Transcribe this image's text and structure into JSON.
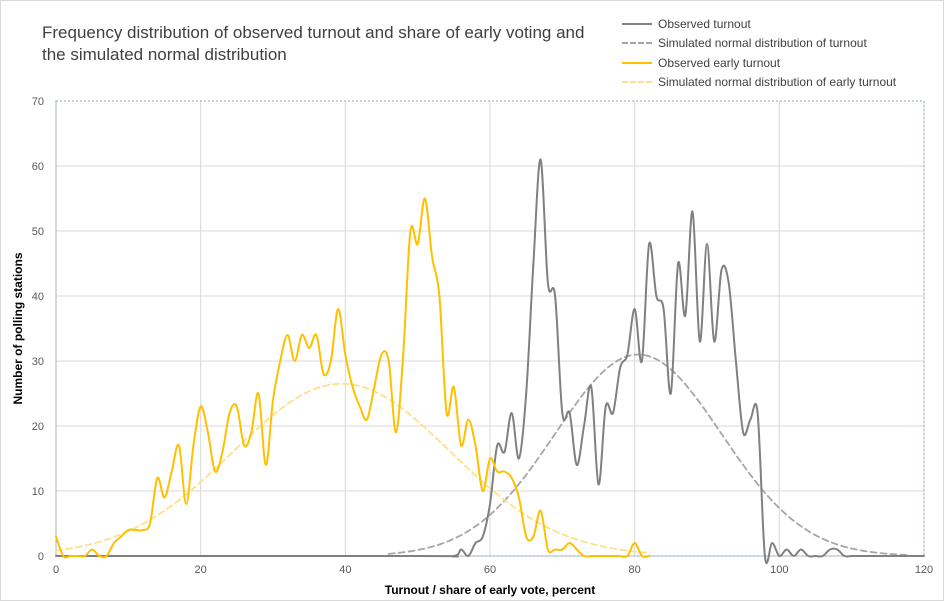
{
  "chart_data": {
    "type": "line",
    "title": "Frequency distribution of observed turnout and share of early voting and the simulated normal distribution",
    "xlabel": "Turnout / share of early vote, percent",
    "ylabel": "Number of polling stations",
    "xlim": [
      0,
      120
    ],
    "ylim": [
      0,
      70
    ],
    "x_ticks": [
      0,
      20,
      40,
      60,
      80,
      100,
      120
    ],
    "y_ticks": [
      0,
      10,
      20,
      30,
      40,
      50,
      60,
      70
    ],
    "grid": true,
    "legend_position": "top-right",
    "series": [
      {
        "name": "Observed turnout",
        "color": "#808080",
        "style": "solid",
        "x": [
          0,
          50,
          55,
          56,
          57,
          58,
          59,
          60,
          61,
          62,
          63,
          64,
          65,
          66,
          67,
          68,
          69,
          70,
          71,
          72,
          73,
          74,
          75,
          76,
          77,
          78,
          79,
          80,
          81,
          82,
          83,
          84,
          85,
          86,
          87,
          88,
          89,
          90,
          91,
          92,
          93,
          94,
          95,
          96,
          97,
          98,
          99,
          100,
          101,
          102,
          103,
          104,
          105,
          106,
          107,
          108,
          109,
          110,
          111,
          112,
          120
        ],
        "y": [
          0,
          0,
          0,
          1,
          0,
          2,
          3,
          8,
          17,
          16,
          22,
          15,
          25,
          45,
          61,
          42,
          40,
          22,
          22,
          14,
          20,
          26,
          11,
          23,
          22,
          29,
          31,
          38,
          30,
          48,
          40,
          38,
          25,
          45,
          37,
          53,
          33,
          48,
          33,
          44,
          42,
          30,
          19,
          21,
          22,
          0,
          2,
          0,
          1,
          0,
          1,
          0,
          0,
          0,
          1,
          1,
          0,
          0,
          0,
          0,
          0
        ]
      },
      {
        "name": "Simulated normal distribution of turnout",
        "color": "#a6a6a6",
        "style": "dashed",
        "mean": 80.5,
        "sd": 11.5,
        "peak": 31,
        "x_range": [
          46,
          118
        ]
      },
      {
        "name": "Observed early turnout",
        "color": "#ffc000",
        "style": "solid",
        "x": [
          0,
          1,
          2,
          3,
          4,
          5,
          6,
          7,
          8,
          9,
          10,
          11,
          12,
          13,
          14,
          15,
          16,
          17,
          18,
          19,
          20,
          21,
          22,
          23,
          24,
          25,
          26,
          27,
          28,
          29,
          30,
          31,
          32,
          33,
          34,
          35,
          36,
          37,
          38,
          39,
          40,
          41,
          42,
          43,
          44,
          45,
          46,
          47,
          48,
          49,
          50,
          51,
          52,
          53,
          54,
          55,
          56,
          57,
          58,
          59,
          60,
          61,
          62,
          63,
          64,
          65,
          66,
          67,
          68,
          69,
          70,
          71,
          72,
          73,
          74,
          75,
          76,
          77,
          78,
          79,
          80,
          81,
          82
        ],
        "y": [
          3,
          0,
          0,
          0,
          0,
          1,
          0,
          0,
          2,
          3,
          4,
          4,
          4,
          5,
          12,
          9,
          13,
          17,
          8,
          17,
          23,
          19,
          13,
          16,
          22,
          23,
          17,
          19,
          25,
          14,
          24,
          30,
          34,
          30,
          34,
          32,
          34,
          28,
          30,
          38,
          31,
          26,
          23,
          21,
          26,
          31,
          30,
          19,
          31,
          50,
          48,
          55,
          46,
          40,
          22,
          26,
          17,
          21,
          17,
          10,
          15,
          13,
          13,
          12,
          9,
          3,
          3,
          7,
          1,
          1,
          1,
          2,
          1,
          0,
          0,
          0,
          0,
          0,
          0,
          0,
          2,
          0,
          0
        ]
      },
      {
        "name": "Simulated normal distribution of early turnout",
        "color": "#ffe08a",
        "style": "dashed",
        "mean": 39.5,
        "sd": 15,
        "peak": 26.5,
        "x_range": [
          0,
          82
        ]
      }
    ]
  }
}
